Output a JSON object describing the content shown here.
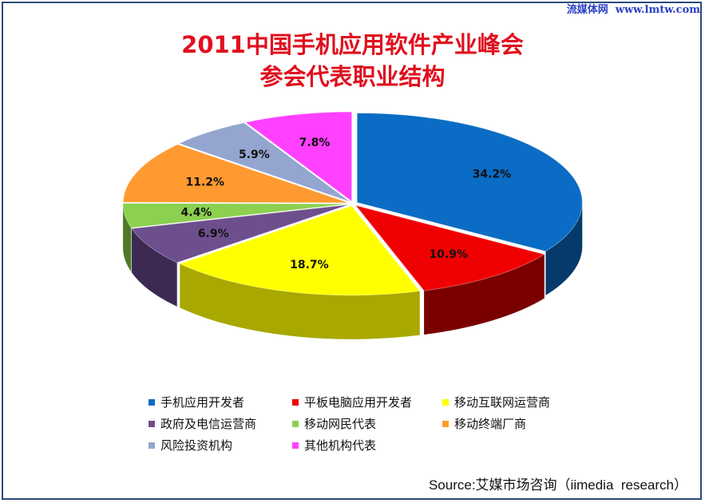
{
  "watermark": "流媒体网  www.lmtw.com",
  "title_line1": "2011中国手机应用软件产业峰会",
  "title_line2": "参会代表职业结构",
  "source": "Source:艾媒市场咨询（iimedia  research）",
  "chart_data": {
    "type": "pie",
    "title": "2011中国手机应用软件产业峰会参会代表职业结构",
    "style": "3d-exploded",
    "legend_position": "bottom",
    "slices": [
      {
        "label": "手机应用开发者",
        "value": 34.2,
        "display": "34.2%",
        "color": "#0a6cc4",
        "side_color": "#053a6a"
      },
      {
        "label": "平板电脑应用开发者",
        "value": 10.9,
        "display": "10.9%",
        "color": "#f00000",
        "side_color": "#7a0000"
      },
      {
        "label": "移动互联网运营商",
        "value": 18.7,
        "display": "18.7%",
        "color": "#ffff00",
        "side_color": "#a8a800"
      },
      {
        "label": "政府及电信运营商",
        "value": 6.9,
        "display": "6.9%",
        "color": "#6e4f8e",
        "side_color": "#3c2a52"
      },
      {
        "label": "移动网民代表",
        "value": 4.4,
        "display": "4.4%",
        "color": "#8cd050",
        "side_color": "#4e7a28"
      },
      {
        "label": "移动终端厂商",
        "value": 11.2,
        "display": "11.2%",
        "color": "#ff9a30",
        "side_color": "#a85a10"
      },
      {
        "label": "风险投资机构",
        "value": 5.9,
        "display": "5.9%",
        "color": "#94a6d0",
        "side_color": "#56658a"
      },
      {
        "label": "其他机构代表",
        "value": 7.8,
        "display": "7.8%",
        "color": "#ff40ff",
        "side_color": "#9a1e9a"
      }
    ]
  }
}
